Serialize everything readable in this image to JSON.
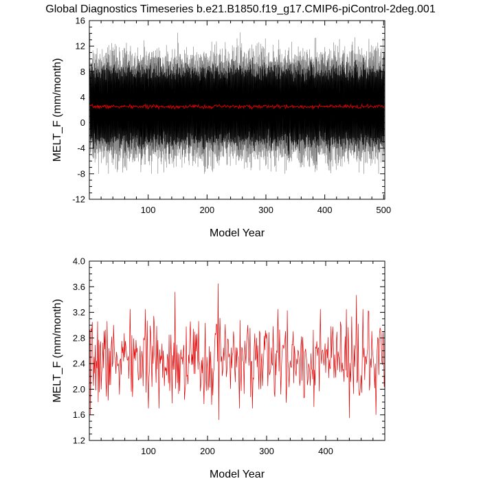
{
  "title": "Global Diagnostics Timeseries b.e21.B1850.f19_g17.CMIP6-piControl-2deg.001",
  "colors": {
    "monthly": "#000000",
    "monthly_spread": "#7a7a7a",
    "annual": "#e00000",
    "frame": "#000000"
  },
  "chart_data": [
    {
      "type": "line",
      "name": "monthly-panel",
      "xlabel": "Model Year",
      "ylabel": "MELT_F (mm/month)",
      "xlim": [
        0,
        502
      ],
      "ylim": [
        -12,
        16
      ],
      "xticks": [
        100,
        200,
        300,
        400,
        500
      ],
      "xtick_labels": [
        "100",
        "200",
        "300",
        "400",
        "500"
      ],
      "yticks": [
        -12,
        -8,
        -4,
        0,
        4,
        8,
        12,
        16
      ],
      "ytick_labels": [
        "-12",
        "-8",
        "-4",
        "0",
        "4",
        "8",
        "12",
        "16"
      ],
      "series": [
        {
          "name": "monthly",
          "color": "#000000",
          "x_start": 1,
          "x_end": 501,
          "mean": 2.55,
          "typical_min": -6.5,
          "typical_max": 13.0,
          "extreme_min": -8.0,
          "extreme_max": 15.5
        },
        {
          "name": "annual-mean",
          "color": "#e00000",
          "x_start": 1,
          "x_end": 501,
          "mean": 2.5,
          "range": [
            2.0,
            3.2
          ]
        }
      ]
    },
    {
      "type": "line",
      "name": "annual-panel",
      "xlabel": "Model Year",
      "ylabel": "MELT_F (mm/month)",
      "xlim": [
        0,
        500
      ],
      "ylim": [
        1.2,
        4.0
      ],
      "xticks": [
        100,
        200,
        300,
        400
      ],
      "xtick_labels": [
        "100",
        "200",
        "300",
        "400"
      ],
      "yticks": [
        1.2,
        1.6,
        2.0,
        2.4,
        2.8,
        3.2,
        3.6,
        4.0
      ],
      "ytick_labels": [
        "1.2",
        "1.6",
        "2.0",
        "2.4",
        "2.8",
        "3.2",
        "3.6",
        "4.0"
      ],
      "series": [
        {
          "name": "annual-mean",
          "color": "#e00000",
          "x_start": 1,
          "x_end": 500,
          "mean": 2.45,
          "min": 1.52,
          "max": 3.65,
          "notable_points": [
            [
              2,
              1.6
            ],
            [
              5,
              3.05
            ],
            [
              145,
              3.52
            ],
            [
              218,
              3.65
            ],
            [
              219,
              1.52
            ],
            [
              440,
              1.55
            ],
            [
              452,
              3.47
            ],
            [
              485,
              1.6
            ]
          ]
        }
      ]
    }
  ]
}
